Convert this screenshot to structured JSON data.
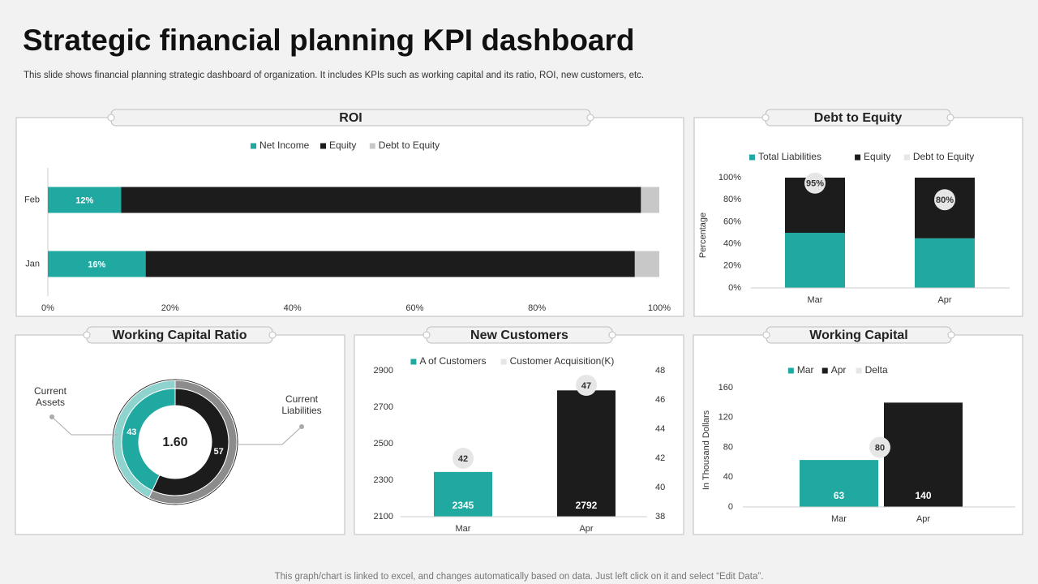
{
  "header": {
    "title": "Strategic financial planning KPI dashboard",
    "subtitle": "This slide shows financial planning strategic dashboard of organization. It includes KPIs such as working capital and its ratio, ROI, new customers, etc."
  },
  "footer": "This graph/chart is linked to excel, and changes automatically based on data. Just left click on it and select “Edit Data”.",
  "chart_data": [
    {
      "type": "bar",
      "orientation": "horizontal",
      "stacked": true,
      "title": "ROI",
      "categories": [
        "Feb",
        "Jan"
      ],
      "series": [
        {
          "name": "Net Income",
          "color": "#20a9a0",
          "values": [
            12,
            16
          ],
          "value_labels": [
            "12%",
            "16%"
          ]
        },
        {
          "name": "Equity",
          "color": "#1c1c1c",
          "values": [
            85,
            80
          ]
        },
        {
          "name": "Debt to Equity",
          "color": "#c8c8c8",
          "values": [
            3,
            4
          ]
        }
      ],
      "xlim": [
        0,
        100
      ],
      "xticks": [
        {
          "value": 0,
          "label": "0%"
        },
        {
          "value": 20,
          "label": "20%"
        },
        {
          "value": 40,
          "label": "40%"
        },
        {
          "value": 60,
          "label": "60%"
        },
        {
          "value": 80,
          "label": "80%"
        },
        {
          "value": 100,
          "label": "100%"
        }
      ],
      "grid": false
    },
    {
      "type": "bar",
      "stacked": true,
      "title": "Debt to Equity",
      "y_label": "Percentage",
      "categories": [
        "Mar",
        "Apr"
      ],
      "series": [
        {
          "name": "Total Liabilities",
          "color": "#20a9a0",
          "values": [
            50,
            45
          ]
        },
        {
          "name": "Equity",
          "color": "#1c1c1c",
          "values": [
            50,
            55
          ]
        },
        {
          "name": "Debt to Equity",
          "color": "#e6e6e6",
          "kind": "dot",
          "values": [
            95,
            80
          ],
          "value_labels": [
            "95%",
            "80%"
          ]
        }
      ],
      "ylim": [
        0,
        100
      ],
      "yticks": [
        {
          "value": 0,
          "label": "0%"
        },
        {
          "value": 20,
          "label": "20%"
        },
        {
          "value": 40,
          "label": "40%"
        },
        {
          "value": 60,
          "label": "60%"
        },
        {
          "value": 80,
          "label": "80%"
        },
        {
          "value": 100,
          "label": "100%"
        }
      ],
      "grid": false
    },
    {
      "type": "doughnut",
      "title": "Working Capital Ratio",
      "categories": [
        "Current Assets",
        "Current Liabilities"
      ],
      "values": [
        43,
        57
      ],
      "colors": [
        "#20a9a0",
        "#1c1c1c"
      ],
      "rim_colors": [
        "#8fd3ce",
        "#8c8c8c"
      ],
      "center_label": "1.60"
    },
    {
      "type": "bar",
      "title": "New Customers",
      "categories": [
        "Mar",
        "Apr"
      ],
      "series": [
        {
          "name": "A of Customers",
          "color": "#20a9a0",
          "colors": [
            "#20a9a0",
            "#1c1c1c"
          ],
          "values": [
            2345,
            2792
          ],
          "data_labels": true
        },
        {
          "name": "Customer Acquisition(K)",
          "color": "#e6e6e6",
          "kind": "dot",
          "axis": "y2",
          "values": [
            42,
            47
          ]
        }
      ],
      "ylim": [
        2100,
        2900
      ],
      "yticks": [
        2100,
        2300,
        2500,
        2700,
        2900
      ],
      "y2lim": [
        38,
        48
      ],
      "y2ticks": [
        38,
        40,
        42,
        44,
        46,
        48
      ],
      "grid": false
    },
    {
      "type": "bar",
      "title": "Working Capital",
      "y_label": "In Thousand Dollars",
      "categories": [
        "Mar",
        "Apr"
      ],
      "series": [
        {
          "name": "Mar",
          "color": "#20a9a0",
          "values": [
            63,
            null
          ],
          "data_labels": true
        },
        {
          "name": "Apr",
          "color": "#1c1c1c",
          "values": [
            null,
            140
          ],
          "data_labels": true
        },
        {
          "name": "Delta",
          "color": "#e6e6e6",
          "kind": "dot",
          "values": [
            80,
            null
          ]
        }
      ],
      "ylim": [
        0,
        160
      ],
      "yticks": [
        0,
        40,
        80,
        120,
        160
      ],
      "grid": false
    }
  ]
}
